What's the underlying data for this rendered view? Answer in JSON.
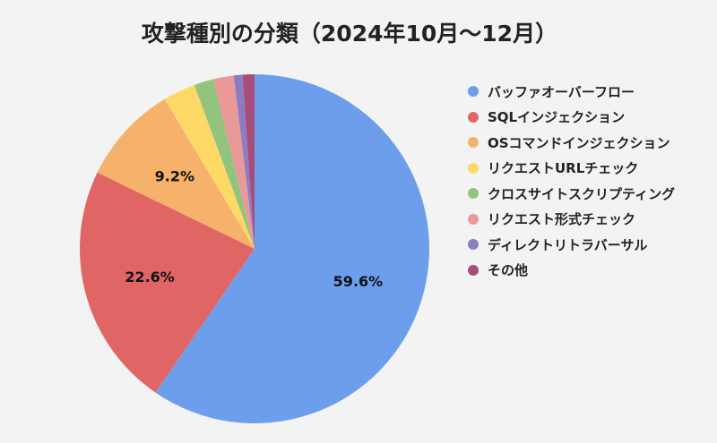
{
  "chart_data": {
    "type": "pie",
    "title": "攻撃種別の分類（2024年10月～12月）",
    "labels": [
      "バッファオーバーフロー",
      "SQLインジェクション",
      "OSコマンドインジェクション",
      "リクエストURLチェック",
      "クロスサイトスクリプティング",
      "リクエスト形式チェック",
      "ディレクトリトラバーサル",
      "その他"
    ],
    "values": [
      59.6,
      22.6,
      9.2,
      3.0,
      1.8,
      1.9,
      0.8,
      1.1
    ],
    "data_labels": [
      "59.6%",
      "22.6%",
      "9.2%",
      "",
      "",
      "",
      "",
      ""
    ],
    "colors": [
      "#6d9eeb",
      "#e06666",
      "#f6b26b",
      "#ffd966",
      "#93c47d",
      "#ea9999",
      "#8e7cc3",
      "#a64d79"
    ],
    "legend_position": "right",
    "start": "top, clockwise"
  }
}
